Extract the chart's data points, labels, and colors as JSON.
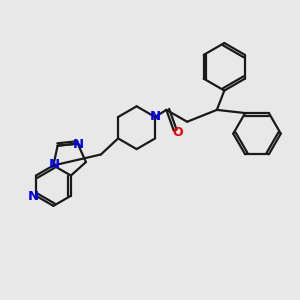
{
  "background_color": "#e8e8e8",
  "bond_color": "#1a1a1a",
  "n_color": "#0000ee",
  "o_color": "#ee0000",
  "line_width": 1.6,
  "figsize": [
    3.0,
    3.0
  ],
  "dpi": 100,
  "xlim": [
    0,
    10
  ],
  "ylim": [
    0,
    10
  ]
}
